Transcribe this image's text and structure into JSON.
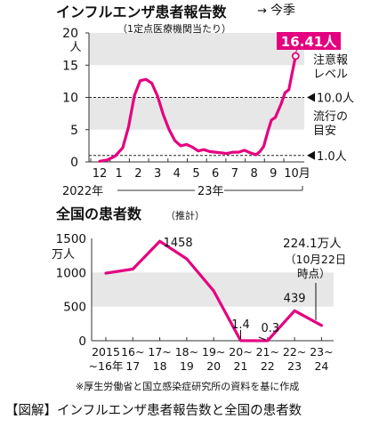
{
  "colors": {
    "series": "#e5007f",
    "band": "#e7e7e7",
    "text": "#111111",
    "axis": "#333333"
  },
  "chart_data": [
    {
      "type": "line",
      "title": "インフルエンザ患者報告数",
      "subtitle": "（1定点医療機関当たり）",
      "yunit": "人",
      "ylim": [
        0,
        20
      ],
      "yticks": [
        "0",
        "5",
        "10",
        "15",
        "20"
      ],
      "x_month_labels": [
        "12",
        "1",
        "2",
        "3",
        "4",
        "5",
        "6",
        "7",
        "8",
        "9",
        "10月"
      ],
      "x_year_labels": [
        "2022年",
        "23年"
      ],
      "x": [
        0.0,
        0.4,
        0.8,
        1.2,
        1.5,
        1.8,
        2.1,
        2.4,
        2.7,
        3.0,
        3.3,
        3.6,
        3.9,
        4.2,
        4.5,
        4.8,
        5.1,
        5.4,
        5.7,
        6.0,
        6.3,
        6.6,
        6.9,
        7.2,
        7.5,
        7.8,
        8.1,
        8.3,
        8.5,
        8.7,
        8.9,
        9.1,
        9.4,
        9.6,
        9.8,
        10.0,
        10.15
      ],
      "values": [
        0.1,
        0.3,
        0.9,
        2.2,
        5.5,
        10.3,
        12.6,
        12.8,
        12.2,
        10.2,
        7.3,
        5.0,
        3.3,
        2.5,
        2.7,
        2.3,
        1.7,
        1.9,
        1.6,
        1.5,
        1.4,
        1.3,
        1.5,
        1.5,
        1.8,
        1.4,
        1.1,
        1.6,
        2.4,
        4.6,
        6.5,
        6.9,
        9.0,
        10.7,
        11.2,
        14.2,
        16.41
      ],
      "current_label": "今季",
      "current_value_label": "16.41人",
      "thresholds": [
        {
          "value": 10.0,
          "label_lines": [
            "注意報",
            "レベル"
          ],
          "value_label": "10.0人"
        },
        {
          "value": 1.0,
          "label_lines": [
            "流行の",
            "目安"
          ],
          "value_label": "1.0人"
        }
      ]
    },
    {
      "type": "line",
      "title": "全国の患者数",
      "subtitle": "（推計）",
      "yunit": "万人",
      "ylim": [
        0,
        1500
      ],
      "yticks": [
        "0",
        "500",
        "1000",
        "1500"
      ],
      "categories": [
        [
          "2015",
          "~16年"
        ],
        [
          "16~",
          "17"
        ],
        [
          "17~",
          "18"
        ],
        [
          "18~",
          "19"
        ],
        [
          "19~",
          "20"
        ],
        [
          "20~",
          "21"
        ],
        [
          "21~",
          "22"
        ],
        [
          "22~",
          "23"
        ],
        [
          "23~",
          "24"
        ]
      ],
      "values": [
        990,
        1050,
        1458,
        1200,
        730,
        1.4,
        0.3,
        439,
        224.1
      ],
      "point_labels": [
        {
          "index": 2,
          "text": "1458"
        },
        {
          "index": 5,
          "text": "1.4"
        },
        {
          "index": 6,
          "text": "0.3"
        },
        {
          "index": 7,
          "text": "439"
        }
      ],
      "annotation": {
        "value": "224.1万人",
        "note": [
          "（10月22日",
          "時点）"
        ]
      },
      "source_note": "※厚生労働省と国立感染症研究所の資料を基に作成"
    }
  ],
  "caption": "【図解】インフルエンザ患者報告数と全国の患者数"
}
